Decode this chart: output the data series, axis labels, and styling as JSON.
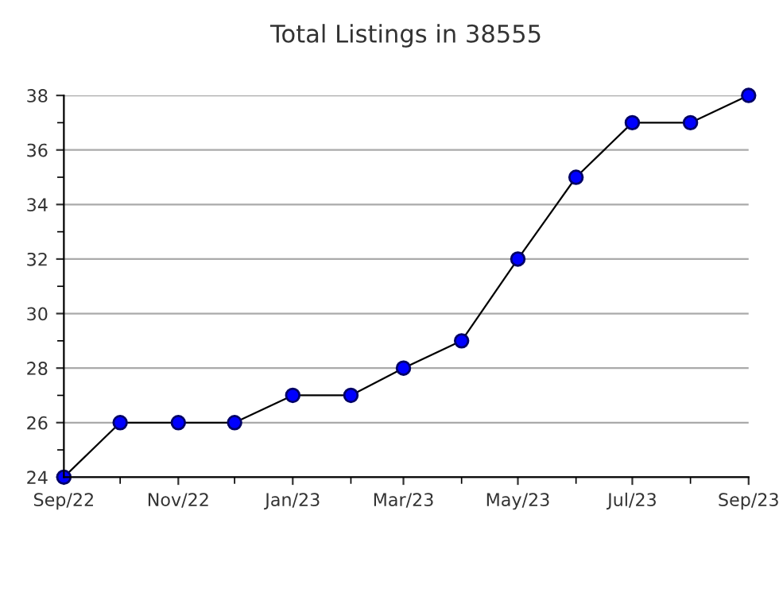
{
  "chart_data": {
    "type": "line",
    "title": "Total Listings in 38555",
    "x": [
      "2022-09",
      "2022-10",
      "2022-11",
      "2022-12",
      "2023-01",
      "2023-02",
      "2023-03",
      "2023-04",
      "2023-05",
      "2023-06",
      "2023-07",
      "2023-08",
      "2023-09"
    ],
    "series": [
      {
        "color": "#0000ff",
        "values": [
          24,
          26,
          26,
          26,
          27,
          27,
          28,
          29,
          32,
          35,
          37,
          37,
          38
        ]
      }
    ],
    "marker": "circle",
    "line_style": "solid",
    "xlim": [
      "2022-09",
      "2023-09"
    ],
    "xticks": [
      {
        "value": "2022-09",
        "label": "Sep/22"
      },
      {
        "value": "2022-10",
        "label": null
      },
      {
        "value": "2022-11",
        "label": "Nov/22"
      },
      {
        "value": "2022-12",
        "label": null
      },
      {
        "value": "2023-01",
        "label": "Jan/23"
      },
      {
        "value": "2023-02",
        "label": null
      },
      {
        "value": "2023-03",
        "label": "Mar/23"
      },
      {
        "value": "2023-04",
        "label": null
      },
      {
        "value": "2023-05",
        "label": "May/23"
      },
      {
        "value": "2023-06",
        "label": null
      },
      {
        "value": "2023-07",
        "label": "Jul/23"
      },
      {
        "value": "2023-08",
        "label": null
      },
      {
        "value": "2023-09",
        "label": "Sep/23"
      }
    ],
    "ylim": [
      24,
      38
    ],
    "yticks": [
      24,
      {
        "value": 25,
        "label": null
      },
      26,
      {
        "value": 27,
        "label": null
      },
      28,
      {
        "value": 29,
        "label": null
      },
      30,
      {
        "value": 31,
        "label": null
      },
      32,
      {
        "value": 33,
        "label": null
      },
      34,
      {
        "value": 35,
        "label": null
      },
      36,
      {
        "value": 37,
        "label": null
      },
      38
    ],
    "grid": "y",
    "legend": false
  }
}
